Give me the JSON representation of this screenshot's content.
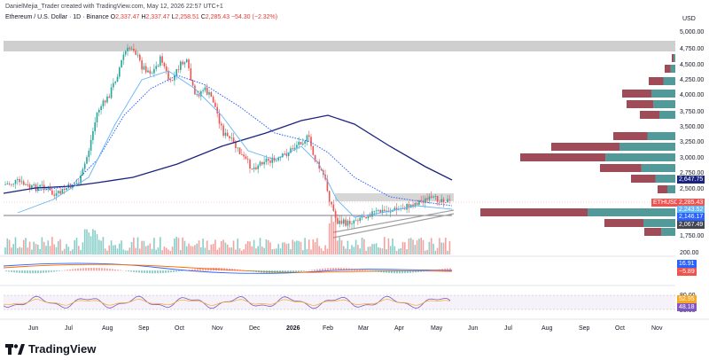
{
  "header": {
    "title": "Ethereum / U.S. Dollar · 1D · Binance",
    "credit": "DanielMejia_Trader created with TradingView.com, May 12, 2026 22:57 UTC+1"
  },
  "ohlc": {
    "o_label": "O",
    "o": "2,337.47",
    "h_label": "H",
    "h": "2,337.47",
    "l_label": "L",
    "l": "2,258.51",
    "c_label": "C",
    "c": "2,285.43",
    "change": "−54.30 (−2.32%)"
  },
  "currency": "USD",
  "footer": {
    "brand": "TradingView"
  },
  "colors": {
    "up": "#26a69a",
    "down": "#ef5350",
    "sma_dark": "#1a237e",
    "sma_light": "#64b5f6",
    "dotted": "#2962ff",
    "vp_up": "#3f8f8f",
    "vp_down": "#8e2b3b"
  },
  "price_axis": {
    "ticks": [
      "5,000.00",
      "4,750.00",
      "4,500.00",
      "4,250.00",
      "4,000.00",
      "3,750.00",
      "3,500.00",
      "3,250.00",
      "3,000.00",
      "2,750.00",
      "2,500.00",
      "1,750.00"
    ],
    "tags": [
      {
        "text": "2,647.75",
        "color": "#1a237e"
      },
      {
        "text": "ETHUSD",
        "color": "#ef5350"
      },
      {
        "text": "2,285.43",
        "color": "#ef5350"
      },
      {
        "text": "2,243.52",
        "color": "#64b5f6"
      },
      {
        "text": "2,146.17",
        "color": "#2962ff"
      },
      {
        "text": "2,067.49",
        "color": "#434651"
      }
    ]
  },
  "macd_axis": {
    "ticks": [
      "200.00"
    ],
    "tags": [
      {
        "text": "16.91",
        "color": "#2962ff"
      },
      {
        "text": "−5.89",
        "color": "#ef5350"
      }
    ]
  },
  "rsi_axis": {
    "ticks": [
      "80.00",
      "20.00"
    ],
    "tags": [
      {
        "text": "52.95",
        "color": "#f9a825"
      },
      {
        "text": "48.18",
        "color": "#7e57c2"
      }
    ]
  },
  "time_axis": {
    "labels": [
      "Jun",
      "Jul",
      "Aug",
      "Sep",
      "Oct",
      "Nov",
      "Dec",
      "2026",
      "Feb",
      "Mar",
      "Apr",
      "May",
      "Jun",
      "Jul",
      "Aug",
      "Sep",
      "Oct",
      "Nov"
    ]
  }
}
